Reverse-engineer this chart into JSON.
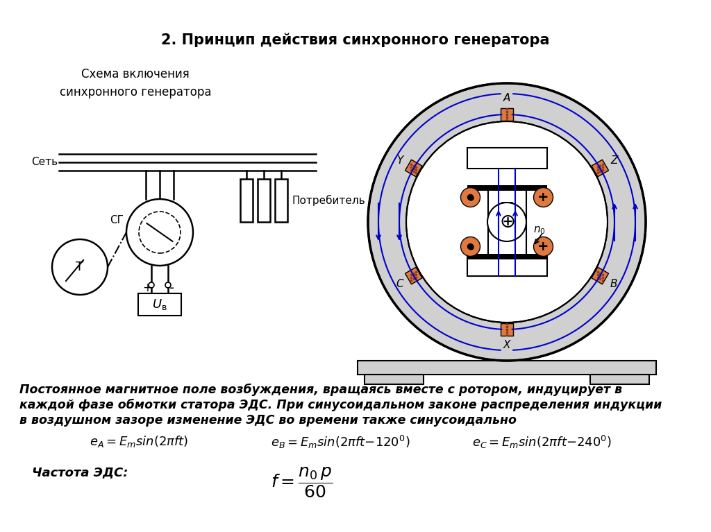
{
  "title": "2. Принцип действия синхронного генератора",
  "subtitle_left": "Схема включения\nсинхронного генератора",
  "label_set": "Сеть",
  "label_sg": "СГ",
  "label_t": "Т",
  "label_consumer": "Потребитель",
  "text_para1": "Постоянное магнитное поле возбуждения, вращаясь вместе с ротором, индуцирует в\nкаждой фазе обмотки статора ЭДС. При синусоидальном законе распределения индукции\nв воздушном зазоре изменение ЭДС во времени также синусоидально",
  "label_freq": "Частота ЭДС:",
  "bg_color": "#ffffff",
  "text_color": "#000000",
  "blue_color": "#0000cc",
  "stator_gray": "#d0d0d0",
  "rotor_gray": "#c8c8c8",
  "coil_orange": "#e07840",
  "dark_color": "#202020"
}
